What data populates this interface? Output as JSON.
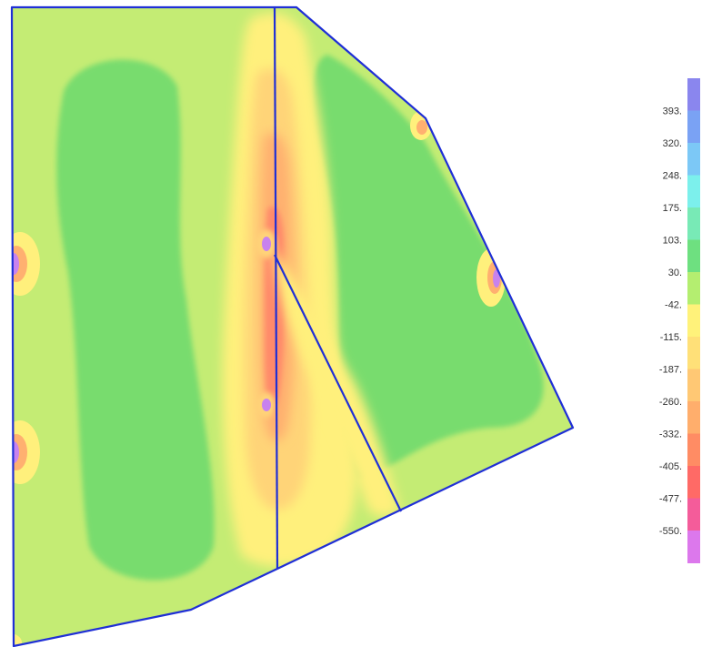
{
  "legend": {
    "labels": [
      "393.",
      "320.",
      "248.",
      "175.",
      "103.",
      "30.",
      "-42.",
      "-115.",
      "-187.",
      "-260.",
      "-332.",
      "-405.",
      "-477.",
      "-550."
    ],
    "colors": [
      "#8a86ee",
      "#7aa2f4",
      "#7cc8f6",
      "#7cf0ec",
      "#78eab6",
      "#6ee080",
      "#b4ee70",
      "#fff27a",
      "#ffe078",
      "#ffc874",
      "#ffae6c",
      "#ff8c64",
      "#ff6a66",
      "#f45c9a",
      "#dc78ec"
    ]
  },
  "colors": {
    "outline": "#1f2fd6",
    "base": "#c4ec74",
    "low": "#78dc6e",
    "high_1": "#fff07c",
    "high_2": "#ffd478",
    "high_3": "#ffb070",
    "high_4": "#ff8a6a",
    "peak": "#c882ee"
  }
}
